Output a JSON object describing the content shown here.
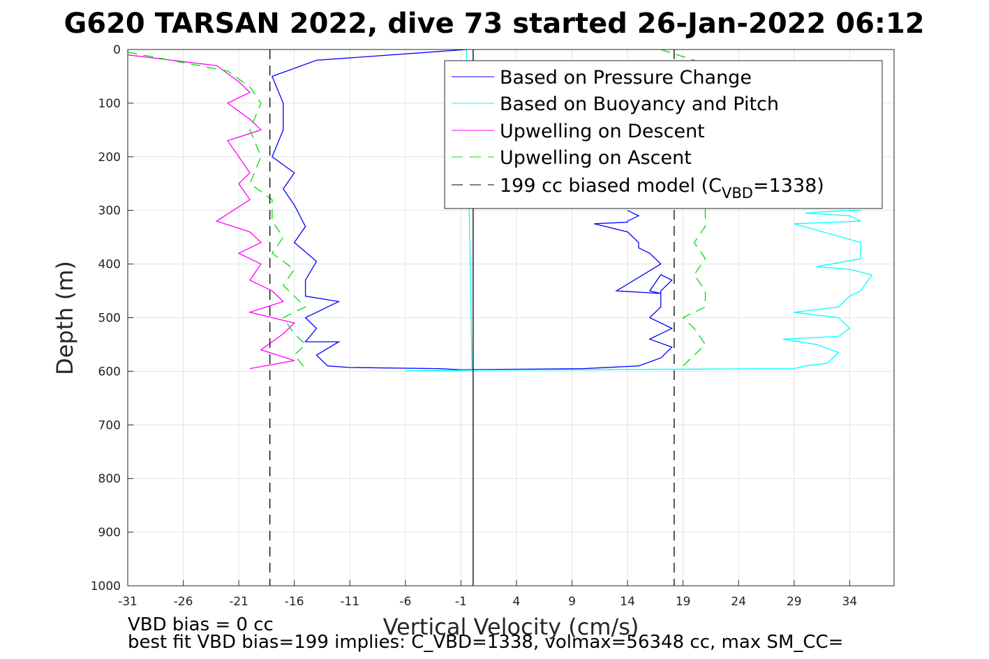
{
  "chart_data": {
    "type": "line",
    "title": "G620 TARSAN 2022, dive 73 started 26-Jan-2022 06:12",
    "xlabel": "Vertical Velocity (cm/s)",
    "ylabel": "Depth (m)",
    "xlim": [
      -31,
      38
    ],
    "ylim": [
      0,
      1000
    ],
    "y_reversed": true,
    "grid": true,
    "xticks": [
      -31,
      -26,
      -21,
      -16,
      -11,
      -6,
      -1,
      4,
      9,
      14,
      19,
      24,
      29,
      34
    ],
    "yticks": [
      0,
      100,
      200,
      300,
      400,
      500,
      600,
      700,
      800,
      900,
      1000
    ],
    "legend_position": "top-right",
    "legend": [
      {
        "label": "Based on Pressure Change",
        "color": "#0000ff",
        "style": "solid"
      },
      {
        "label": "Based on Buoyancy and Pitch",
        "color": "#00ffff",
        "style": "solid"
      },
      {
        "label": "Upwelling on Descent",
        "color": "#ff00ff",
        "style": "solid"
      },
      {
        "label": "Upwelling on Ascent",
        "color": "#00dd00",
        "style": "dashed"
      },
      {
        "label": "199 cc biased model (C",
        "sub": "VBD",
        "tail": "=1338)",
        "color": "#000000",
        "style": "dashed"
      }
    ],
    "series": [
      {
        "name": "Based on Pressure Change",
        "color": "#0000ff",
        "style": "solid",
        "x": [
          -0.5,
          -14,
          -18,
          -17,
          -17,
          -18,
          -16,
          -17,
          -16,
          -15,
          -16,
          -14,
          -15,
          -15,
          -12,
          -15,
          -14,
          -15,
          -12,
          -14,
          -13,
          -11,
          -3,
          -1,
          10,
          15,
          17,
          18,
          16,
          18,
          16,
          17,
          17,
          18,
          17,
          16,
          17,
          13,
          17,
          16,
          15,
          15,
          14,
          11,
          14,
          14,
          15,
          14
        ],
        "y": [
          0,
          20,
          50,
          100,
          150,
          200,
          230,
          260,
          290,
          330,
          360,
          395,
          430,
          460,
          470,
          500,
          520,
          545,
          545,
          570,
          590,
          593,
          595,
          597,
          595,
          590,
          575,
          555,
          540,
          520,
          500,
          480,
          450,
          430,
          420,
          450,
          455,
          450,
          400,
          380,
          370,
          360,
          340,
          325,
          322,
          320,
          310,
          300
        ]
      },
      {
        "name": "Based on Buoyancy and Pitch",
        "color": "#00ffff",
        "style": "solid",
        "x": [
          -0.5,
          0,
          -2,
          -6,
          -1,
          10,
          20,
          29,
          30,
          32,
          33,
          31,
          28,
          33,
          34,
          33,
          29,
          33,
          34,
          35,
          36,
          34,
          31,
          35,
          35,
          29,
          35,
          34,
          30,
          34,
          35
        ],
        "y": [
          0,
          598,
          599,
          599,
          598,
          597,
          596,
          595,
          590,
          585,
          565,
          550,
          540,
          535,
          520,
          500,
          490,
          480,
          460,
          450,
          420,
          410,
          405,
          390,
          360,
          325,
          320,
          310,
          305,
          300,
          300
        ]
      },
      {
        "name": "Upwelling on Descent",
        "color": "#ff00ff",
        "style": "solid",
        "x": [
          -31,
          -23,
          -21,
          -20,
          -22,
          -20,
          -19,
          -22,
          -21,
          -20,
          -21,
          -20,
          -23,
          -20,
          -19,
          -21,
          -19,
          -20,
          -18,
          -17,
          -20,
          -16,
          -17,
          -19,
          -16,
          -20
        ],
        "y": [
          10,
          30,
          60,
          80,
          100,
          130,
          150,
          170,
          200,
          230,
          250,
          280,
          320,
          340,
          360,
          380,
          400,
          430,
          450,
          470,
          490,
          510,
          530,
          560,
          580,
          595
        ]
      },
      {
        "name": "Upwelling on Ascent",
        "color": "#00dd00",
        "style": "dashed",
        "x": [
          -31,
          -22,
          -20,
          -19,
          -20,
          -19,
          -20,
          -18,
          -18,
          -17,
          -18,
          -16,
          -17,
          -16,
          -15,
          -17,
          -16,
          -15,
          -16,
          -15
        ],
        "y": [
          5,
          40,
          70,
          100,
          150,
          200,
          250,
          280,
          320,
          350,
          380,
          410,
          440,
          460,
          480,
          500,
          530,
          550,
          570,
          595
        ]
      },
      {
        "name": "Upwelling on Ascent",
        "color": "#00dd00",
        "style": "dashed",
        "x": [
          17,
          20,
          20,
          21,
          20,
          21,
          21,
          20,
          21,
          20,
          21,
          21,
          19,
          20,
          21,
          20,
          19
        ],
        "y": [
          0,
          20,
          50,
          80,
          100,
          300,
          330,
          360,
          390,
          420,
          450,
          480,
          500,
          520,
          550,
          570,
          590
        ]
      },
      {
        "name": "199 cc biased model",
        "color": "#000000",
        "style": "dashed",
        "x": [
          -18.2,
          -18.2
        ],
        "y": [
          0,
          1000
        ]
      },
      {
        "name": "199 cc biased model",
        "color": "#000000",
        "style": "dashed",
        "x": [
          18.2,
          18.2
        ],
        "y": [
          0,
          1000
        ]
      },
      {
        "name": "zero line",
        "color": "#000000",
        "style": "solid",
        "x": [
          0.1,
          0.1
        ],
        "y": [
          0,
          1000
        ]
      }
    ],
    "notes": [
      "VBD bias = 0 cc",
      "best fit VBD bias=199 implies: C_VBD=1338, volmax=56348 cc, max SM_CC="
    ]
  }
}
